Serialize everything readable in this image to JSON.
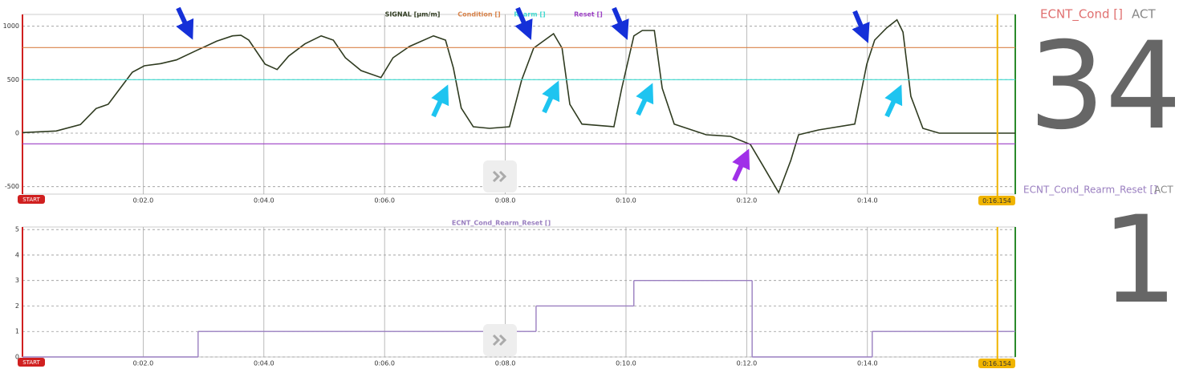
{
  "chart_data": [
    {
      "type": "line",
      "xlim": [
        0,
        16.45
      ],
      "ylim": [
        -570,
        1110
      ],
      "xticks": [
        {
          "value": 2,
          "label": "0:02.0"
        },
        {
          "value": 4,
          "label": "0:04.0"
        },
        {
          "value": 6,
          "label": "0:06.0"
        },
        {
          "value": 8,
          "label": "0:08.0"
        },
        {
          "value": 10,
          "label": "0:10.0"
        },
        {
          "value": 12,
          "label": "0:12.0"
        },
        {
          "value": 14,
          "label": "0:14.0"
        }
      ],
      "yticks": [
        -500,
        0,
        500,
        1000
      ],
      "grid": true,
      "start_label": "START",
      "cursor": {
        "value": 16.154,
        "label": "0:16.154",
        "color": "#f0b400"
      },
      "series": [
        {
          "name": "SIGNAL [µm/m]",
          "color": "#2f3b20",
          "x": [
            0,
            0.56,
            0.96,
            1.22,
            1.42,
            1.62,
            1.82,
            2.02,
            2.29,
            2.55,
            2.89,
            3.22,
            3.48,
            3.62,
            3.75,
            4.02,
            4.22,
            4.41,
            4.68,
            4.95,
            5.15,
            5.35,
            5.61,
            5.94,
            6.14,
            6.41,
            6.81,
            7.01,
            7.14,
            7.27,
            7.47,
            7.74,
            8.07,
            8.27,
            8.47,
            8.8,
            8.94,
            9.07,
            9.27,
            9.8,
            9.93,
            10.13,
            10.27,
            10.47,
            10.6,
            10.8,
            11.33,
            11.73,
            12.06,
            12.26,
            12.53,
            12.73,
            12.86,
            13.19,
            13.79,
            13.99,
            14.12,
            14.32,
            14.49,
            14.59,
            14.72,
            14.92,
            15.19,
            16.45
          ],
          "values": [
            5,
            20,
            80,
            230,
            270,
            420,
            570,
            630,
            650,
            685,
            775,
            860,
            910,
            915,
            870,
            645,
            595,
            720,
            835,
            910,
            870,
            705,
            585,
            520,
            705,
            810,
            910,
            870,
            610,
            235,
            60,
            45,
            60,
            495,
            795,
            930,
            795,
            270,
            85,
            60,
            420,
            910,
            960,
            960,
            420,
            85,
            -15,
            -30,
            -105,
            -295,
            -555,
            -255,
            -15,
            30,
            85,
            645,
            870,
            985,
            1060,
            945,
            345,
            45,
            0,
            0
          ]
        },
        {
          "name": "Condition []",
          "color": "#d9834a",
          "value": 800
        },
        {
          "name": "Rearm []",
          "color": "#3fd9d0",
          "value": 500
        },
        {
          "name": "Reset []",
          "color": "#9b3fc4",
          "value": -100
        }
      ]
    },
    {
      "type": "step",
      "title": "ECNT_Cond_Rearm_Reset []",
      "xlim": [
        0,
        16.45
      ],
      "ylim": [
        0,
        5.1
      ],
      "xticks": [
        {
          "value": 2,
          "label": "0:02.0"
        },
        {
          "value": 4,
          "label": "0:04.0"
        },
        {
          "value": 6,
          "label": "0:06.0"
        },
        {
          "value": 8,
          "label": "0:08.0"
        },
        {
          "value": 10,
          "label": "0:10.0"
        },
        {
          "value": 12,
          "label": "0:12.0"
        },
        {
          "value": 14,
          "label": "0:14.0"
        }
      ],
      "yticks": [
        0,
        1,
        2,
        3,
        4,
        5
      ],
      "grid": true,
      "start_label": "START",
      "cursor": {
        "value": 16.154,
        "label": "0:16.154",
        "color": "#f0b400"
      },
      "series": [
        {
          "name": "ECNT_Cond_Rearm_Reset []",
          "color": "#9a7fc0",
          "x": [
            0,
            2.91,
            8.51,
            10.13,
            12.09,
            14.08
          ],
          "values": [
            0,
            1,
            2,
            3,
            0,
            1
          ]
        }
      ]
    }
  ],
  "displays": [
    {
      "label": "ECNT_Cond []",
      "mode": "ACT",
      "value": 34
    },
    {
      "label": "ECNT_Cond_Rearm_Reset []",
      "mode": "ACT",
      "value": 1
    }
  ]
}
